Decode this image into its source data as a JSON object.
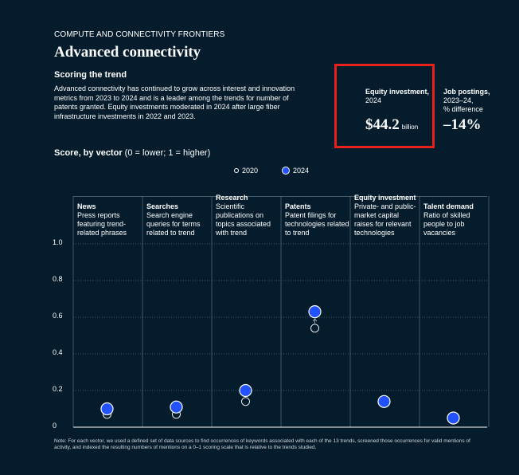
{
  "header": {
    "kicker": "COMPUTE AND CONNECTIVITY FRONTIERS",
    "title": "Advanced connectivity",
    "subhead": "Scoring the trend",
    "description": "Advanced connectivity has continued to grow across interest and innovation metrics from 2023 to 2024 and is a leader among the trends for number of patents granted. Equity investments moderated in 2024 after large fiber infrastructure investments in 2022 and 2023."
  },
  "equity": {
    "label_bold": "Equity investment,",
    "label_year": "2024",
    "value": "$44.2",
    "unit": "billion"
  },
  "jobs": {
    "label_bold": "Job postings,",
    "label_years": "2023–24,",
    "label_desc": "% difference",
    "value": "–14%"
  },
  "score": {
    "title_bold": "Score, by vector",
    "title_rest": " (0 = lower; 1 = higher)"
  },
  "legend": {
    "open": "2020",
    "filled": "2024"
  },
  "note": "Note: For each vector, we used a defined set of data sources to find occurrences of keywords associated with each of the 13 trends, screened those occurrences for valid mentions of activity, and indexed the resulting numbers of mentions on a 0–1 scoring scale that is relative to the trends studied.",
  "colors": {
    "background": "#051c2c",
    "series_2024": "#2251ff",
    "highlight_box": "#e8221b"
  },
  "chart_data": {
    "type": "scatter",
    "title": "Score, by vector (0 = lower; 1 = higher)",
    "ylim": [
      0,
      1
    ],
    "yticks": [
      "0",
      "0.2",
      "0.4",
      "0.6",
      "0.8",
      "1.0"
    ],
    "categories": [
      "News",
      "Searches",
      "Research",
      "Patents",
      "Equity investment",
      "Talent demand"
    ],
    "descriptions": [
      "Press reports featuring trend-related phrases",
      "Search engine queries for terms related to trend",
      "Scientific publications on topics associated with trend",
      "Patent filings for technologies related to trend",
      "Private- and public-market capital raises for relevant technologies",
      "Ratio of skilled people to job vacancies"
    ],
    "series": [
      {
        "name": "2020",
        "values": [
          0.07,
          0.07,
          0.14,
          0.54,
          0.14,
          0.04
        ]
      },
      {
        "name": "2024",
        "values": [
          0.1,
          0.11,
          0.2,
          0.63,
          0.14,
          0.05
        ]
      }
    ]
  }
}
